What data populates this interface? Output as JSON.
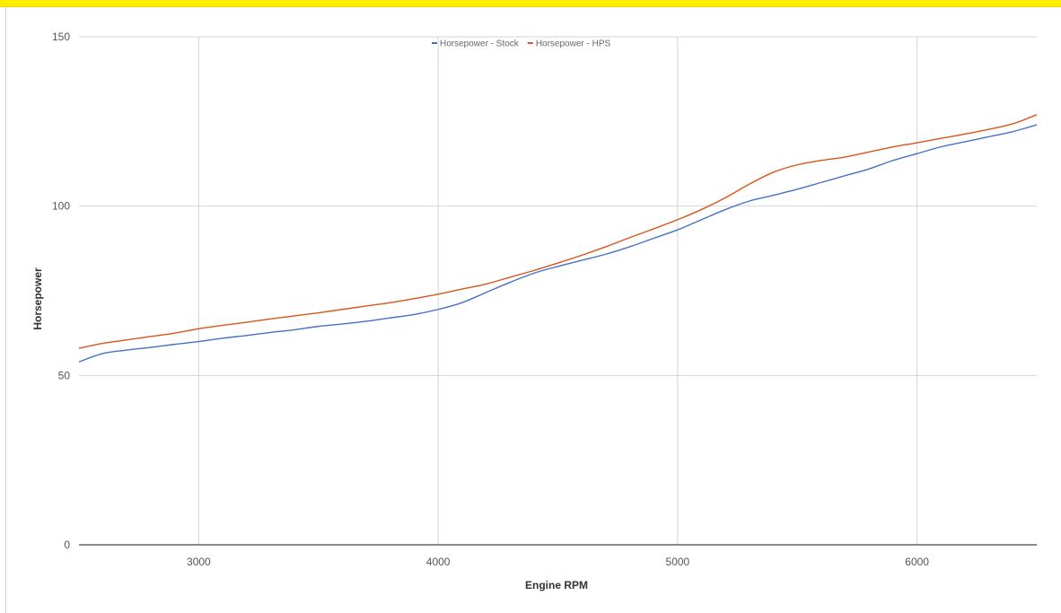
{
  "banner": {
    "background": "#ffee00",
    "title_color": "#e01010"
  },
  "chart_data": {
    "type": "line",
    "title": "",
    "xlabel": "Engine RPM",
    "ylabel": "Horsepower",
    "xlim": [
      2500,
      6500
    ],
    "ylim": [
      0,
      150
    ],
    "x_ticks": [
      "3000",
      "4000",
      "5000",
      "6000"
    ],
    "y_ticks": [
      "0",
      "50",
      "100",
      "150"
    ],
    "grid": true,
    "legend_position": "top-center",
    "x": [
      2500,
      2600,
      2700,
      2800,
      2900,
      3000,
      3100,
      3200,
      3300,
      3400,
      3500,
      3600,
      3700,
      3800,
      3900,
      4000,
      4100,
      4200,
      4300,
      4400,
      4500,
      4600,
      4700,
      4800,
      4900,
      5000,
      5100,
      5200,
      5300,
      5400,
      5500,
      5600,
      5700,
      5800,
      5900,
      6000,
      6100,
      6200,
      6300,
      6400,
      6500
    ],
    "series": [
      {
        "name": "Horsepower - Stock",
        "color": "#4472c4",
        "values": [
          54,
          56.5,
          57.5,
          58.3,
          59.2,
          60,
          61,
          61.8,
          62.7,
          63.5,
          64.5,
          65.2,
          66,
          67,
          68,
          69.5,
          71.5,
          74.5,
          77.5,
          80.2,
          82.2,
          84,
          85.8,
          88,
          90.5,
          93,
          96,
          99,
          101.5,
          103.2,
          105,
          107,
          109,
          111,
          113.5,
          115.5,
          117.5,
          119,
          120.5,
          122,
          124
        ]
      },
      {
        "name": "Horsepower - HPS",
        "color": "#d9541e",
        "values": [
          58,
          59.5,
          60.5,
          61.5,
          62.5,
          63.8,
          64.8,
          65.7,
          66.7,
          67.6,
          68.5,
          69.5,
          70.5,
          71.5,
          72.7,
          74,
          75.5,
          77,
          79,
          81,
          83.2,
          85.5,
          88,
          90.7,
          93.3,
          96,
          99,
          102.5,
          106.5,
          110,
          112.2,
          113.5,
          114.5,
          116,
          117.5,
          118.7,
          120,
          121.3,
          122.7,
          124.3,
          127
        ]
      }
    ]
  }
}
